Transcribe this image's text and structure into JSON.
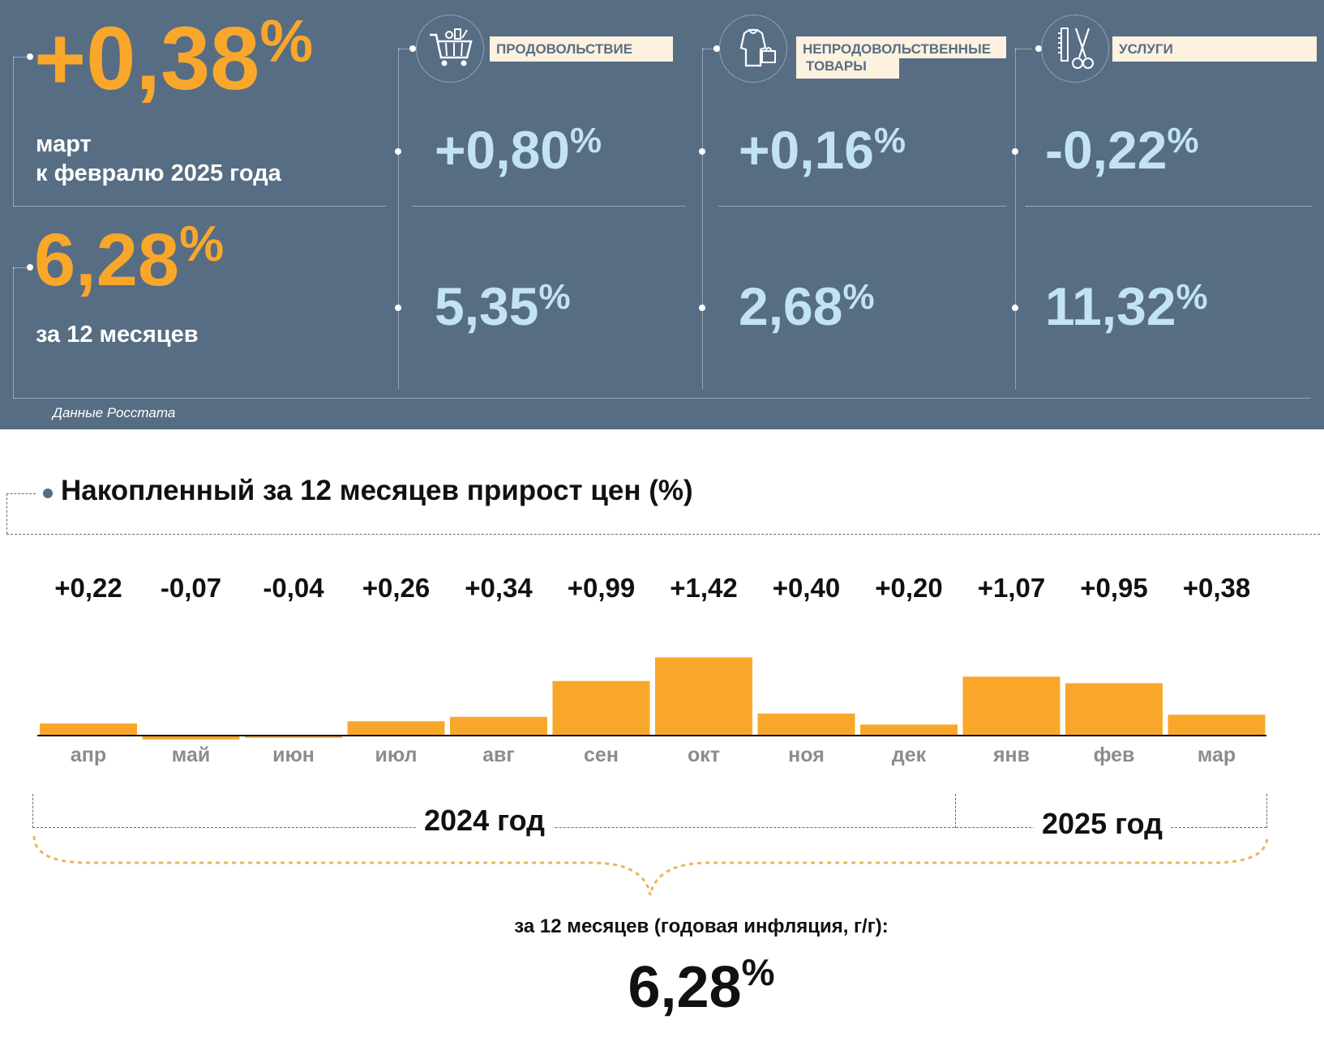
{
  "summary": {
    "monthly_value": "+0,38",
    "percent_sign": "%",
    "monthly_caption_line1": "март",
    "monthly_caption_line2": "к февралю 2025 года",
    "annual_value": "6,28",
    "annual_caption": "за 12 месяцев",
    "source": "Данные Росстата"
  },
  "categories": [
    {
      "label": "ПРОДОВОЛЬСТВИЕ",
      "icon": "shopping-cart-icon",
      "monthly": "+0,80",
      "annual": "5,35"
    },
    {
      "label_line1": "НЕПРОДОВОЛЬСТВЕННЫЕ",
      "label_line2": "ТОВАРЫ",
      "icon": "clothes-bag-icon",
      "monthly": "+0,16",
      "annual": "2,68"
    },
    {
      "label": "УСЛУГИ",
      "icon": "scissors-comb-icon",
      "monthly": "-0,22",
      "annual": "11,32"
    }
  ],
  "chart_title": "Накопленный за 12 месяцев прирост цен (%)",
  "chart_data": {
    "type": "bar",
    "title": "Накопленный за 12 месяцев прирост цен (%)",
    "categories": [
      "апр",
      "май",
      "июн",
      "июл",
      "авг",
      "сен",
      "окт",
      "ноя",
      "дек",
      "янв",
      "фев",
      "мар"
    ],
    "values": [
      0.22,
      -0.07,
      -0.04,
      0.26,
      0.34,
      0.99,
      1.42,
      0.4,
      0.2,
      1.07,
      0.95,
      0.38
    ],
    "value_labels": [
      "+0,22",
      "-0,07",
      "-0,04",
      "+0,26",
      "+0,34",
      "+0,99",
      "+1,42",
      "+0,40",
      "+0,20",
      "+1,07",
      "+0,95",
      "+0,38"
    ],
    "bar_color": "#f9a72b",
    "year_groups": [
      {
        "label": "2024 год",
        "months": 9
      },
      {
        "label": "2025 год",
        "months": 3
      }
    ],
    "grid": false
  },
  "footer": {
    "caption": "за 12 месяцев (годовая инфляция, г/г):",
    "value": "6,28",
    "percent_sign": "%"
  },
  "colors": {
    "panel": "#576d84",
    "accent_orange": "#f9a72b",
    "value_blue": "#c2e3f5",
    "label_bg": "#fdf1df"
  }
}
